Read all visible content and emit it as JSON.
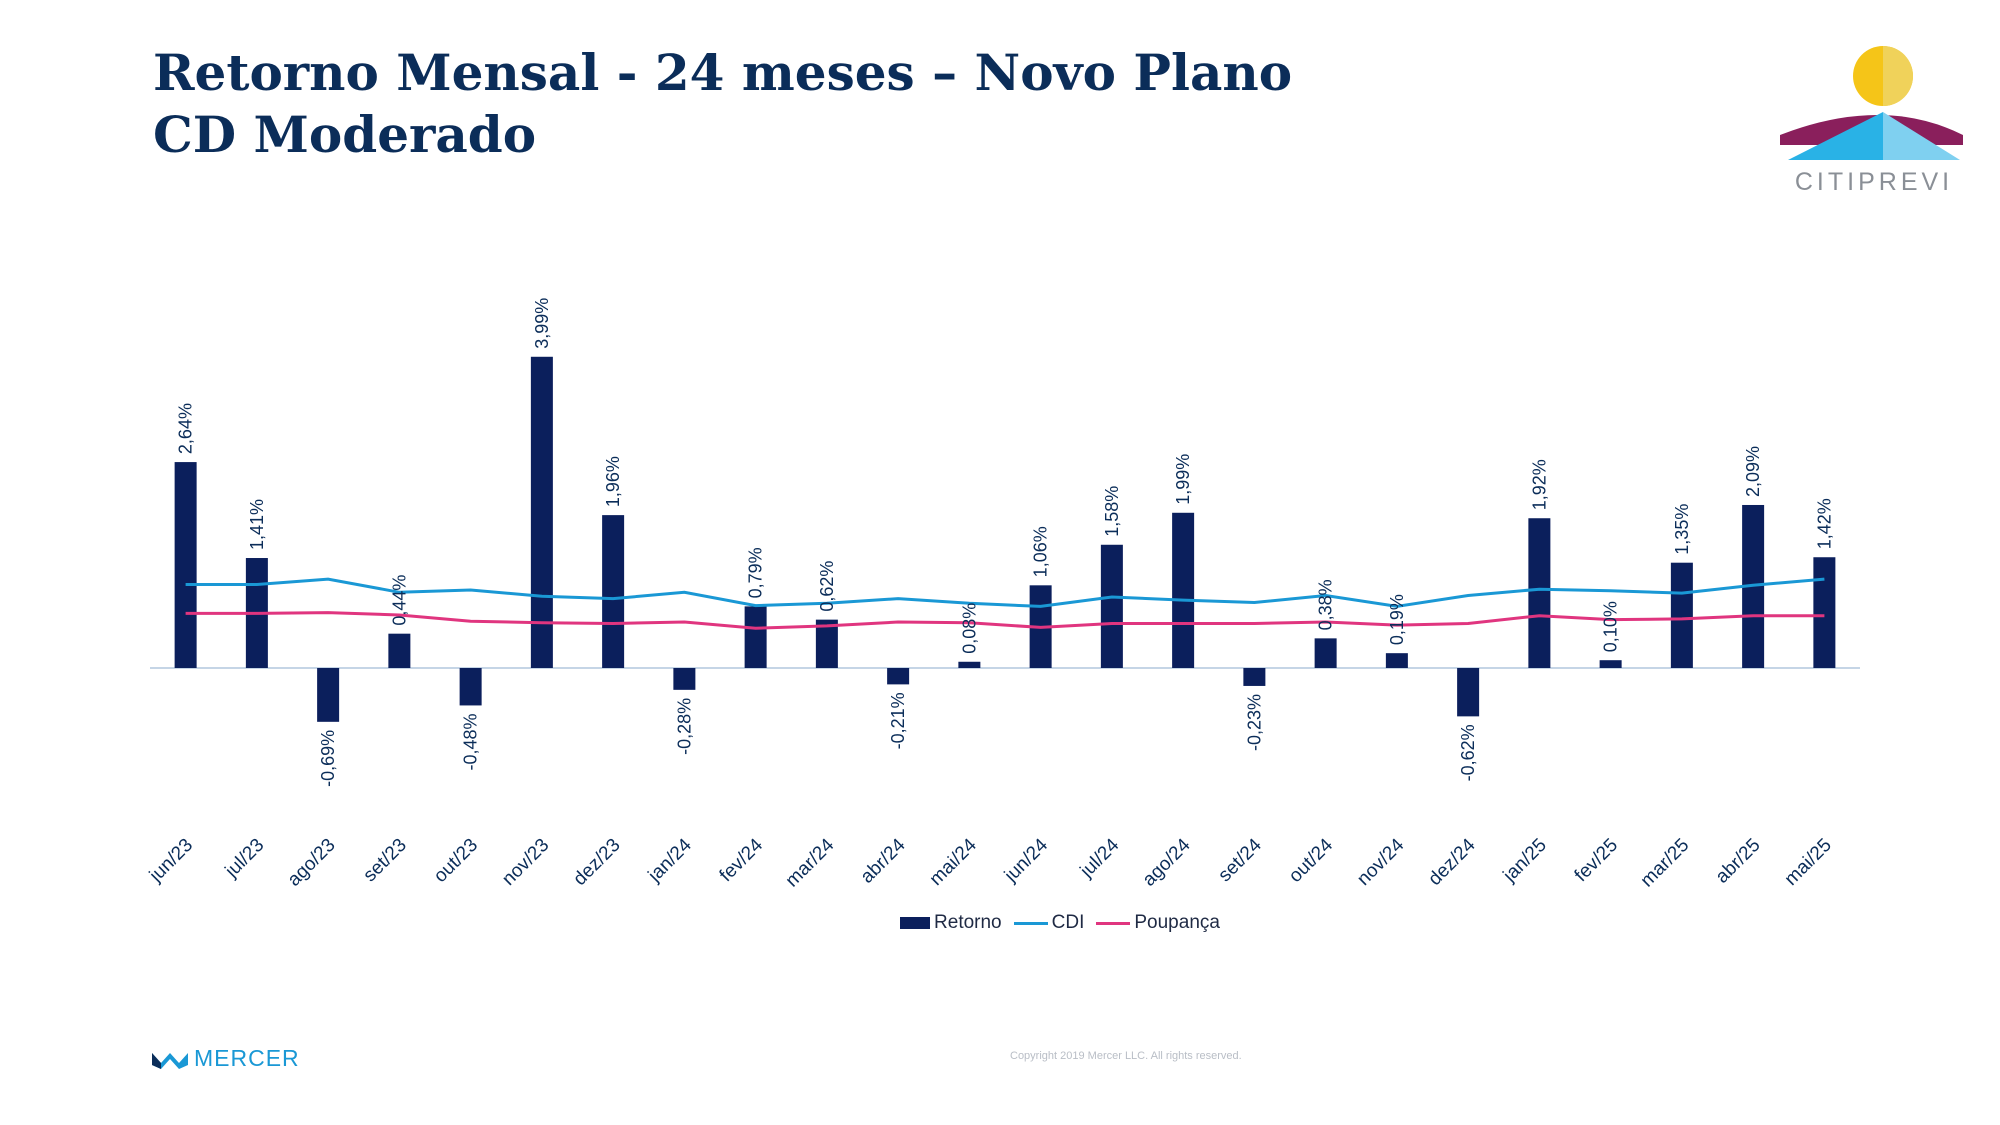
{
  "title": "Retorno Mensal - 24 meses – Novo Plano CD Moderado",
  "logo": {
    "text": "CITIPREVI"
  },
  "footer": {
    "brand": "MERCER",
    "copyright": "Copyright 2019 Mercer LLC. All rights reserved."
  },
  "colors": {
    "retorno": "#0b1f5c",
    "cdi": "#1a98d5",
    "poupanca": "#e0357f",
    "title": "#0b2d59"
  },
  "chart_data": {
    "type": "bar",
    "categories": [
      "jun/23",
      "jul/23",
      "ago/23",
      "set/23",
      "out/23",
      "nov/23",
      "dez/23",
      "jan/24",
      "fev/24",
      "mar/24",
      "abr/24",
      "mai/24",
      "jun/24",
      "jul/24",
      "ago/24",
      "set/24",
      "out/24",
      "nov/24",
      "dez/24",
      "jan/25",
      "fev/25",
      "mar/25",
      "abr/25",
      "mai/25"
    ],
    "series": [
      {
        "name": "Retorno",
        "type": "bar",
        "values": [
          2.64,
          1.41,
          -0.69,
          0.44,
          -0.48,
          3.99,
          1.96,
          -0.28,
          0.79,
          0.62,
          -0.21,
          0.08,
          1.06,
          1.58,
          1.99,
          -0.23,
          0.38,
          0.19,
          -0.62,
          1.92,
          0.1,
          1.35,
          2.09,
          1.42
        ],
        "labels": [
          "2,64%",
          "1,41%",
          "-0,69%",
          "0,44%",
          "-0,48%",
          "3,99%",
          "1,96%",
          "-0,28%",
          "0,79%",
          "0,62%",
          "-0,21%",
          "0,08%",
          "1,06%",
          "1,58%",
          "1,99%",
          "-0,23%",
          "0,38%",
          "0,19%",
          "-0,62%",
          "1,92%",
          "0,10%",
          "1,35%",
          "2,09%",
          "1,42%"
        ]
      },
      {
        "name": "CDI",
        "type": "line",
        "values": [
          1.07,
          1.07,
          1.14,
          0.97,
          1.0,
          0.92,
          0.89,
          0.97,
          0.8,
          0.83,
          0.89,
          0.83,
          0.79,
          0.91,
          0.87,
          0.84,
          0.93,
          0.79,
          0.93,
          1.01,
          0.99,
          0.96,
          1.06,
          1.14
        ]
      },
      {
        "name": "Poupança",
        "type": "line",
        "values": [
          0.7,
          0.7,
          0.71,
          0.68,
          0.6,
          0.58,
          0.57,
          0.59,
          0.51,
          0.54,
          0.59,
          0.58,
          0.52,
          0.57,
          0.57,
          0.57,
          0.59,
          0.55,
          0.57,
          0.67,
          0.62,
          0.63,
          0.67,
          0.67
        ]
      }
    ],
    "ylim": [
      -2.1,
      4.5
    ],
    "grid": false,
    "legend": "bottom-center"
  }
}
